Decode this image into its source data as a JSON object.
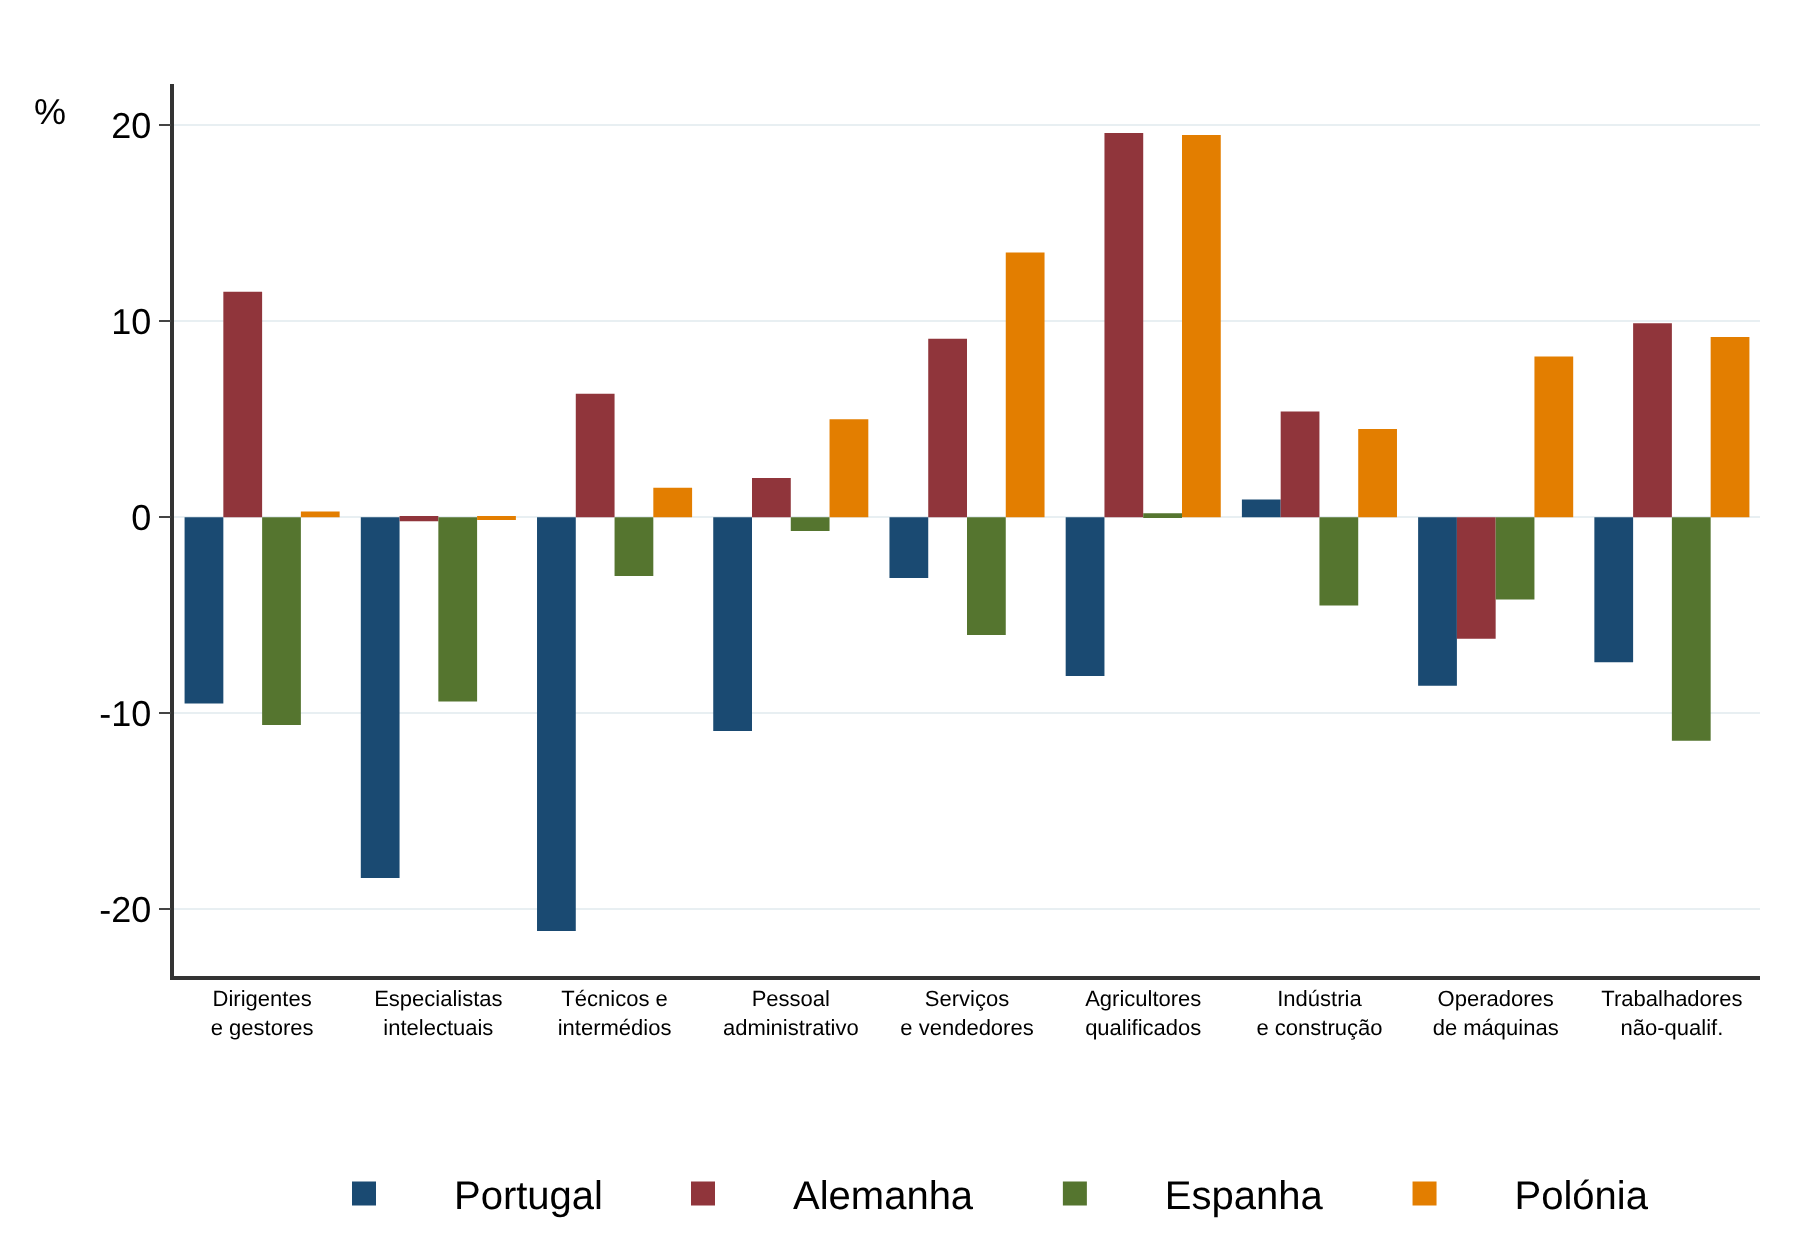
{
  "chart_data": {
    "type": "bar",
    "ylabel": "%",
    "categories": [
      "Dirigentes\ne gestores",
      "Especialistas\nintelectuais",
      "Técnicos e\nintermédios",
      "Pessoal\nadministrativo",
      "Serviços\ne vendedores",
      "Agricultores\nqualificados",
      "Indústria\ne construção",
      "Operadores\nde máquinas",
      "Trabalhadores\nnão-qualif."
    ],
    "series": [
      {
        "name": "Portugal",
        "color": "#1a4a72",
        "values": [
          -9.5,
          -18.4,
          -21.1,
          -10.9,
          -3.1,
          -8.1,
          0.9,
          -8.6,
          -7.4
        ]
      },
      {
        "name": "Alemanha",
        "color": "#90353b",
        "values": [
          11.5,
          -0.2,
          6.3,
          2.0,
          9.1,
          19.6,
          5.4,
          -6.2,
          9.9
        ]
      },
      {
        "name": "Espanha",
        "color": "#55752f",
        "values": [
          -10.6,
          -9.4,
          -3.0,
          -0.7,
          -6.0,
          0.2,
          -4.5,
          -4.2,
          -11.4
        ]
      },
      {
        "name": "Polónia",
        "color": "#e37e00",
        "values": [
          0.3,
          -0.1,
          1.5,
          5.0,
          13.5,
          19.5,
          4.5,
          8.2,
          9.2
        ]
      }
    ],
    "ylim": [
      -23.4,
      22.1
    ],
    "yticks": [
      -20,
      -10,
      0,
      10,
      20
    ],
    "grid": "y",
    "legend": "bottom"
  }
}
